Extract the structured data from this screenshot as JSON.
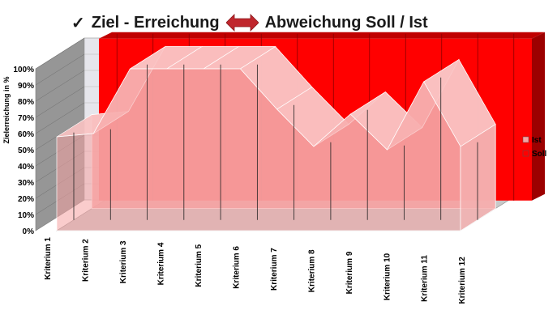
{
  "header": {
    "check_glyph": "✓",
    "left_title": "Ziel - Erreichung",
    "right_title": "Abweichung Soll / Ist",
    "arrow_icon": "double-arrow-icon"
  },
  "colors": {
    "soll": "#ff0000",
    "ist": "#f6a2a2",
    "back_wall": "#e6e6ec",
    "side_wall": "#969696",
    "floor": "#c8c8c8",
    "arrow": "#c0272d"
  },
  "chart_data": {
    "type": "area",
    "three_d": true,
    "categories": [
      "Kriterium 1",
      "Kriterium 2",
      "Kriterium 3",
      "Kriterium 4",
      "Kriterium 5",
      "Kriterium 6",
      "Kriterium 7",
      "Kriterium 8",
      "Kriterium 9",
      "Kriterium 10",
      "Kriterium 11",
      "Kriterium 12"
    ],
    "series": [
      {
        "name": "Soll",
        "values": [
          100,
          100,
          100,
          100,
          100,
          100,
          100,
          100,
          100,
          100,
          100,
          100
        ]
      },
      {
        "name": "Ist",
        "values": [
          58,
          60,
          100,
          100,
          100,
          100,
          75,
          52,
          72,
          50,
          92,
          52
        ]
      }
    ],
    "ylabel": "Zielerreichung in %",
    "ylim": [
      0,
      100
    ],
    "yticks": [
      "0%",
      "10%",
      "20%",
      "30%",
      "40%",
      "50%",
      "60%",
      "70%",
      "80%",
      "90%",
      "100%"
    ],
    "grid": true,
    "legend": "right"
  }
}
